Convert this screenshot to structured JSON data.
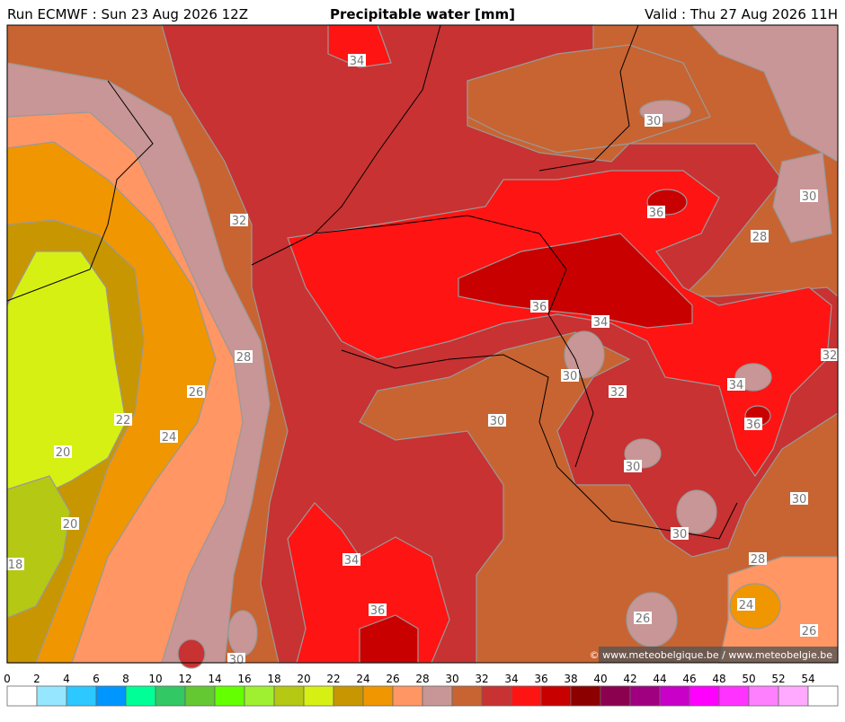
{
  "header": {
    "run": "Run ECMWF : Sun 23 Aug 2026 12Z",
    "title": "Precipitable water [mm]",
    "valid": "Valid : Thu 27 Aug 2026 11H"
  },
  "contour_labels": [
    34,
    30,
    32,
    30,
    36,
    28,
    36,
    34,
    32,
    28,
    30,
    26,
    32,
    34,
    22,
    30,
    36,
    24,
    20,
    30,
    30,
    20,
    30,
    18,
    34,
    28,
    36,
    24,
    26,
    26,
    30
  ],
  "credit": "© www.meteobelgique.be / www.meteobelgie.be",
  "legend": {
    "ticks": [
      0,
      2,
      4,
      6,
      8,
      10,
      12,
      14,
      16,
      18,
      20,
      22,
      24,
      26,
      28,
      30,
      32,
      34,
      36,
      38,
      40,
      42,
      44,
      46,
      48,
      50,
      52,
      54
    ],
    "colors": [
      "#ffffff",
      "#96e6ff",
      "#2cc8ff",
      "#0096ff",
      "#00ff96",
      "#32c864",
      "#64c832",
      "#64ff00",
      "#a0f032",
      "#b4c814",
      "#d7f014",
      "#c89600",
      "#f09600",
      "#ff9664",
      "#c89696",
      "#c86432",
      "#c83232",
      "#ff1414",
      "#c80000",
      "#8c0000",
      "#8c0050",
      "#a00080",
      "#c800c8",
      "#ff00ff",
      "#ff32ff",
      "#ff80ff",
      "#ffaaff",
      "#ffffff"
    ]
  }
}
